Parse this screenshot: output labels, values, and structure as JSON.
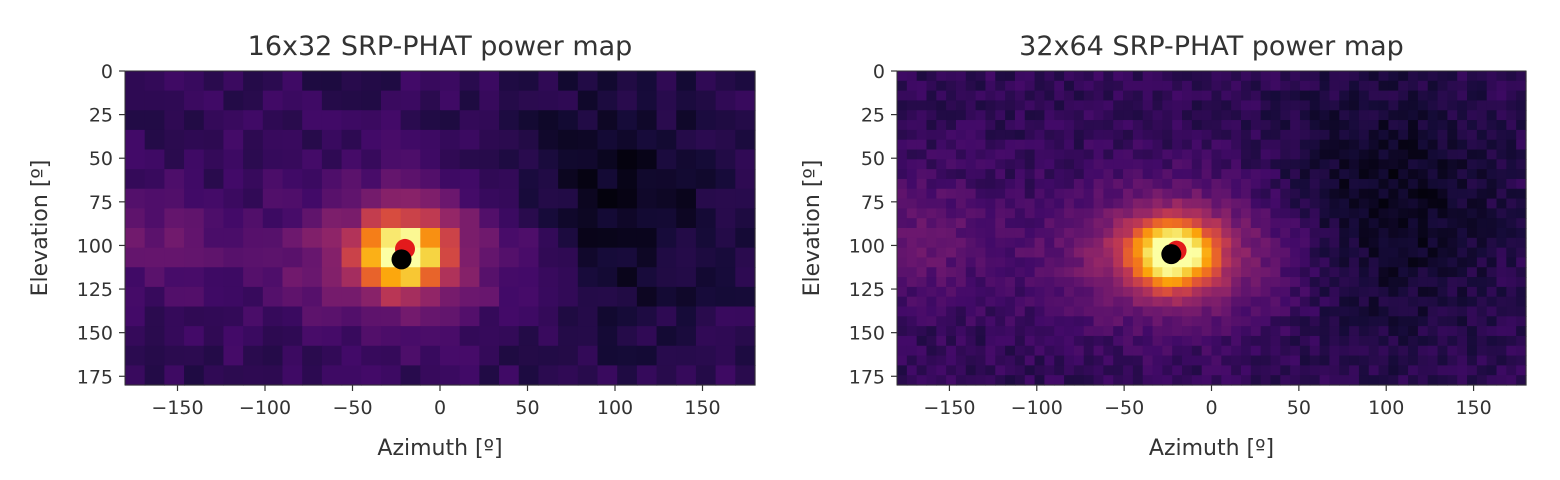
{
  "chart_data": [
    {
      "type": "heatmap",
      "title": "16x32 SRP-PHAT power map",
      "xlabel": "Azimuth [º]",
      "ylabel": "Elevation [º]",
      "xlim": [
        -180,
        180
      ],
      "ylim": [
        180,
        0
      ],
      "x_ticks": [
        -150,
        -100,
        -50,
        0,
        50,
        100,
        150
      ],
      "y_ticks": [
        0,
        25,
        50,
        75,
        100,
        125,
        150,
        175
      ],
      "grid": {
        "rows": 16,
        "cols": 32
      },
      "colormap": "inferno",
      "peak": {
        "azimuth": -22,
        "elevation": 105
      },
      "markers": [
        {
          "label": "",
          "color": "#e31a1c",
          "azimuth": -20,
          "elevation": 102
        },
        {
          "label": "",
          "color": "#000000",
          "azimuth": -22,
          "elevation": 108
        }
      ]
    },
    {
      "type": "heatmap",
      "title": "32x64 SRP-PHAT power map",
      "xlabel": "Azimuth [º]",
      "ylabel": "Elevation [º]",
      "xlim": [
        -180,
        180
      ],
      "ylim": [
        180,
        0
      ],
      "x_ticks": [
        -150,
        -100,
        -50,
        0,
        50,
        100,
        150
      ],
      "y_ticks": [
        0,
        25,
        50,
        75,
        100,
        125,
        150,
        175
      ],
      "grid": {
        "rows": 32,
        "cols": 64
      },
      "colormap": "inferno",
      "peak": {
        "azimuth": -22,
        "elevation": 105
      },
      "markers": [
        {
          "label": "",
          "color": "#e31a1c",
          "azimuth": -20,
          "elevation": 103
        },
        {
          "label": "",
          "color": "#000000",
          "azimuth": -23,
          "elevation": 105
        }
      ]
    }
  ]
}
